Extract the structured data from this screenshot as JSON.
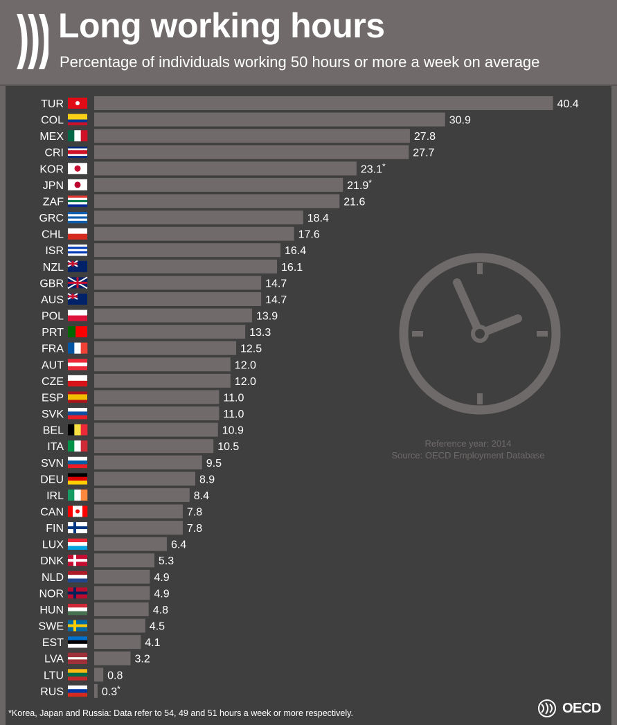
{
  "header": {
    "title": "Long working hours",
    "subtitle": "Percentage of individuals working 50 hours or more a week on average"
  },
  "colors": {
    "header_bg": "#706a6a",
    "chart_bg": "#403f3f",
    "bar": "#706a6a",
    "text": "#ffffff",
    "clock": "#6f6a6a"
  },
  "icons": {
    "clock": "clock-icon",
    "logo": "oecd-logo-icon"
  },
  "notes": {
    "reference_year": "Reference year: 2014",
    "source": "Source: OECD Employment Database",
    "footnote": "*Korea, Japan and Russia: Data refer to 54, 49 and 51 hours a week or more respectively.",
    "brand": "OECD"
  },
  "chart_data": {
    "type": "bar",
    "orientation": "horizontal",
    "title": "Long working hours",
    "subtitle": "Percentage of individuals working 50 hours or more a week on average",
    "xlim": [
      0,
      45
    ],
    "grid": false,
    "categories": [
      "TUR",
      "COL",
      "MEX",
      "CRI",
      "KOR",
      "JPN",
      "ZAF",
      "GRC",
      "CHL",
      "ISR",
      "NZL",
      "GBR",
      "AUS",
      "POL",
      "PRT",
      "FRA",
      "AUT",
      "CZE",
      "ESP",
      "SVK",
      "BEL",
      "ITA",
      "SVN",
      "DEU",
      "IRL",
      "CAN",
      "FIN",
      "LUX",
      "DNK",
      "NLD",
      "NOR",
      "HUN",
      "SWE",
      "EST",
      "LVA",
      "LTU",
      "RUS"
    ],
    "values": [
      40.4,
      30.9,
      27.8,
      27.7,
      23.1,
      21.9,
      21.6,
      18.4,
      17.6,
      16.4,
      16.1,
      14.7,
      14.7,
      13.9,
      13.3,
      12.5,
      12.0,
      12.0,
      11.0,
      11.0,
      10.9,
      10.5,
      9.5,
      8.9,
      8.4,
      7.8,
      7.8,
      6.4,
      5.3,
      4.9,
      4.9,
      4.8,
      4.5,
      4.1,
      3.2,
      0.8,
      0.3
    ],
    "labels": [
      "40.4",
      "30.9",
      "27.8",
      "27.7",
      "23.1*",
      "21.9*",
      "21.6",
      "18.4",
      "17.6",
      "16.4",
      "16.1",
      "14.7",
      "14.7",
      "13.9",
      "13.3",
      "12.5",
      "12.0",
      "12.0",
      "11.0",
      "11.0",
      "10.9",
      "10.5",
      "9.5",
      "8.9",
      "8.4",
      "7.8",
      "7.8",
      "6.4",
      "5.3",
      "4.9",
      "4.9",
      "4.8",
      "4.5",
      "4.1",
      "3.2",
      "0.8",
      "0.3*"
    ]
  }
}
